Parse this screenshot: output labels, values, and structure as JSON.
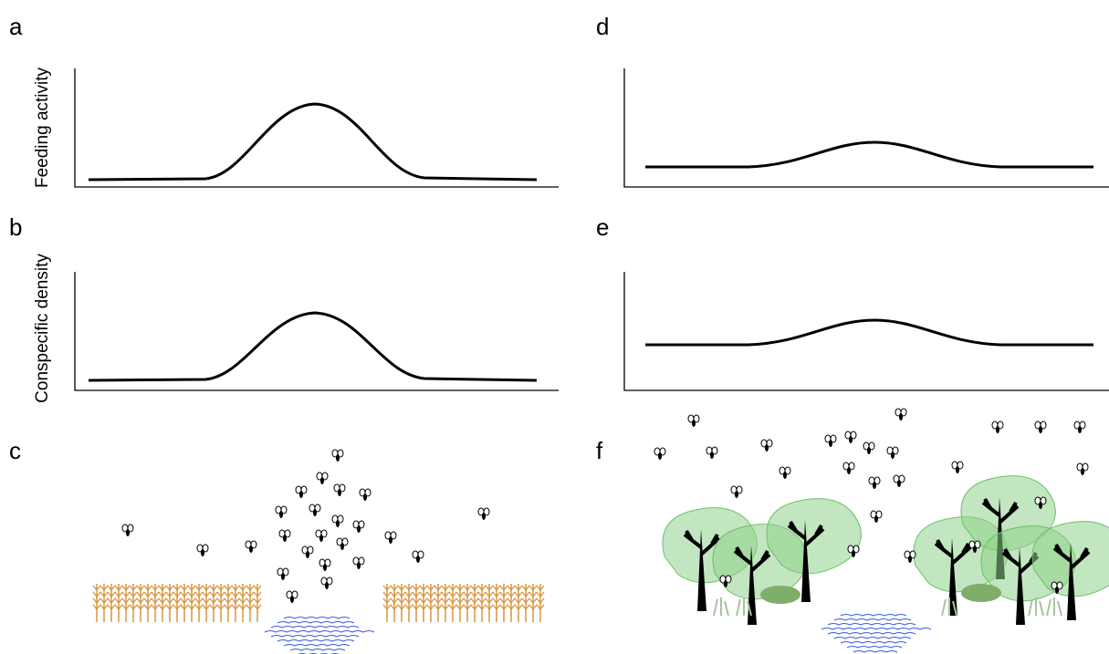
{
  "panels": {
    "a": "a",
    "b": "b",
    "c": "c",
    "d": "d",
    "e": "e",
    "f": "f"
  },
  "y_labels": [
    "Feeding activity",
    "Conspecific density"
  ]
}
